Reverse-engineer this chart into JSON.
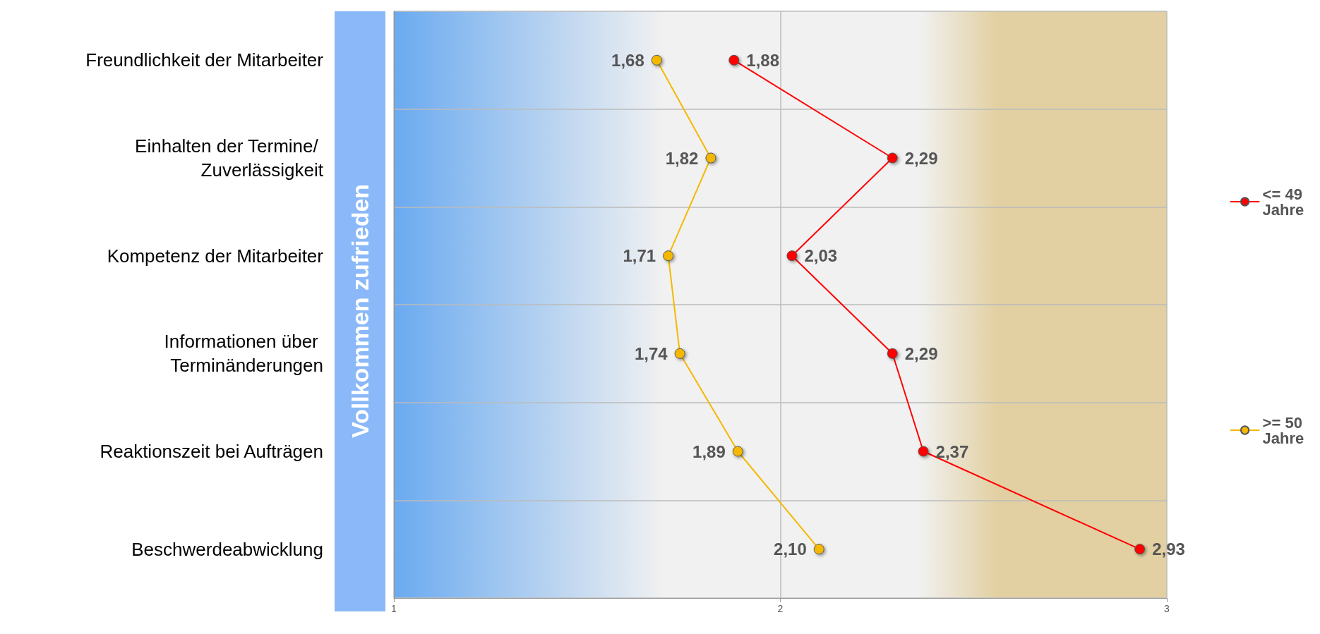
{
  "chart_data": {
    "type": "line",
    "orientation": "horizontal",
    "categories": [
      "Freundlichkeit der Mitarbeiter",
      "Einhalten der Termine/ Zuverlässigkeit",
      "Kompetenz der Mitarbeiter",
      "Informationen über Terminänderungen",
      "Reaktionszeit bei Aufträgen",
      "Beschwerdeabwicklung"
    ],
    "series": [
      {
        "name": "<= 49 Jahre",
        "color": "#ff0000",
        "values": [
          1.88,
          2.29,
          2.03,
          2.29,
          2.37,
          2.93
        ],
        "value_labels": [
          "1,88",
          "2,29",
          "2,03",
          "2,29",
          "2,37",
          "2,93"
        ]
      },
      {
        "name": ">= 50 Jahre",
        "color": "#f5b800",
        "values": [
          1.68,
          1.82,
          1.71,
          1.74,
          1.89,
          2.1
        ],
        "value_labels": [
          "1,68",
          "1,82",
          "1,71",
          "1,74",
          "1,89",
          "2,10"
        ]
      }
    ],
    "xlim": [
      1,
      3
    ],
    "xticks": [
      1,
      2,
      3
    ],
    "annotations": [
      "Vollkommen zufrieden"
    ],
    "grid": true,
    "legend": "right",
    "marker": "circle",
    "line_style": "solid"
  }
}
